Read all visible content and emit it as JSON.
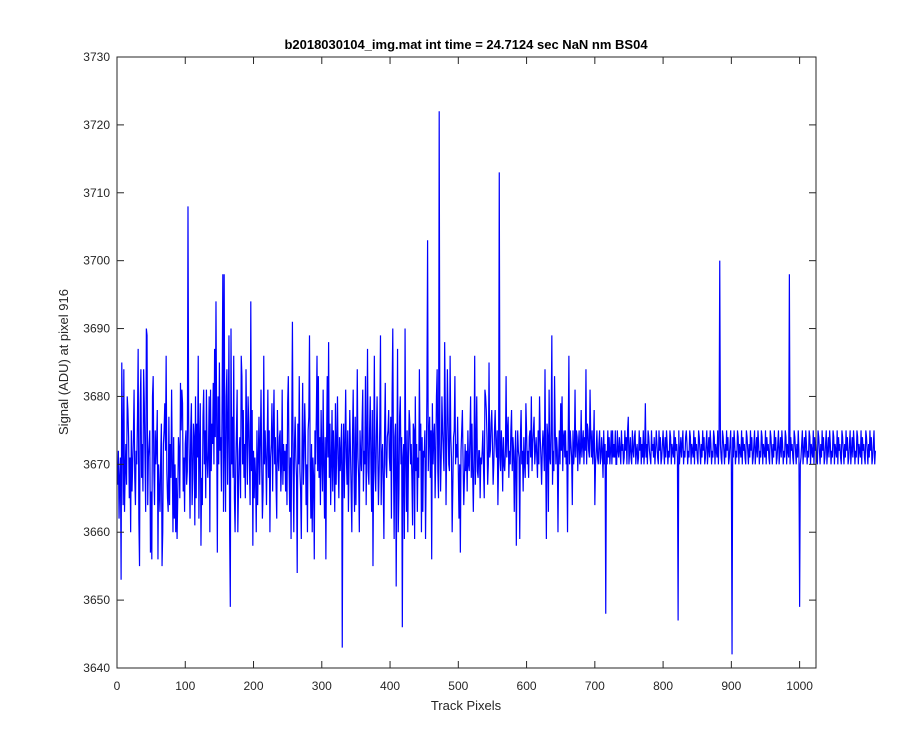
{
  "figure": {
    "title": "b2018030104_img.mat int time = 24.7124 sec  NaN nm BS04"
  },
  "chart_data": {
    "type": "line",
    "title": "b2018030104_img.mat int time = 24.7124 sec  NaN nm BS04",
    "xlabel": "Track Pixels",
    "ylabel": "Signal (ADU) at pixel 916",
    "xlim": [
      0,
      1024
    ],
    "ylim": [
      3640,
      3730
    ],
    "xticks": [
      0,
      100,
      200,
      300,
      400,
      500,
      600,
      700,
      800,
      900,
      1000
    ],
    "yticks": [
      3640,
      3650,
      3660,
      3670,
      3680,
      3690,
      3700,
      3710,
      3720,
      3730
    ],
    "grid": false,
    "series": [
      {
        "color": "#0000ff",
        "x_start": 1,
        "x_step": 1,
        "values": [
          3667,
          3672,
          3662,
          3668,
          3671,
          3653,
          3685,
          3675,
          3664,
          3684,
          3663,
          3669,
          3673,
          3667,
          3680,
          3678,
          3674,
          3665,
          3671,
          3660,
          3675,
          3666,
          3670,
          3674,
          3681,
          3668,
          3664,
          3672,
          3670,
          3677,
          3687,
          3662,
          3655,
          3679,
          3684,
          3668,
          3673,
          3666,
          3684,
          3679,
          3671,
          3663,
          3690,
          3689,
          3664,
          3671,
          3673,
          3675,
          3657,
          3666,
          3656,
          3680,
          3683,
          3669,
          3664,
          3675,
          3670,
          3673,
          3678,
          3656,
          3670,
          3666,
          3663,
          3671,
          3676,
          3655,
          3660,
          3673,
          3675,
          3679,
          3672,
          3686,
          3669,
          3665,
          3663,
          3677,
          3664,
          3673,
          3668,
          3681,
          3670,
          3660,
          3674,
          3662,
          3670,
          3660,
          3668,
          3659,
          3665,
          3674,
          3672,
          3665,
          3682,
          3675,
          3681,
          3679,
          3666,
          3671,
          3663,
          3673,
          3675,
          3667,
          3669,
          3708,
          3676,
          3670,
          3662,
          3675,
          3679,
          3664,
          3668,
          3676,
          3674,
          3661,
          3680,
          3665,
          3676,
          3671,
          3686,
          3662,
          3673,
          3679,
          3658,
          3668,
          3664,
          3677,
          3681,
          3670,
          3675,
          3665,
          3681,
          3671,
          3668,
          3672,
          3680,
          3660,
          3681,
          3669,
          3676,
          3673,
          3682,
          3670,
          3687,
          3674,
          3694,
          3676,
          3657,
          3680,
          3670,
          3685,
          3672,
          3674,
          3666,
          3680,
          3698,
          3663,
          3698,
          3671,
          3663,
          3680,
          3684,
          3667,
          3676,
          3689,
          3660,
          3649,
          3690,
          3670,
          3677,
          3668,
          3686,
          3665,
          3660,
          3670,
          3675,
          3681,
          3660,
          3666,
          3672,
          3674,
          3665,
          3686,
          3683,
          3670,
          3678,
          3668,
          3673,
          3665,
          3684,
          3675,
          3667,
          3680,
          3676,
          3670,
          3664,
          3694,
          3669,
          3678,
          3658,
          3672,
          3665,
          3671,
          3668,
          3660,
          3675,
          3664,
          3671,
          3677,
          3667,
          3673,
          3681,
          3670,
          3662,
          3666,
          3686,
          3670,
          3675,
          3671,
          3664,
          3673,
          3681,
          3668,
          3675,
          3660,
          3671,
          3673,
          3679,
          3666,
          3675,
          3681,
          3670,
          3674,
          3667,
          3662,
          3678,
          3671,
          3669,
          3674,
          3675,
          3666,
          3670,
          3681,
          3667,
          3673,
          3669,
          3672,
          3666,
          3673,
          3664,
          3679,
          3683,
          3670,
          3663,
          3671,
          3659,
          3675,
          3691,
          3670,
          3660,
          3673,
          3677,
          3671,
          3668,
          3654,
          3676,
          3670,
          3683,
          3669,
          3666,
          3659,
          3672,
          3682,
          3667,
          3671,
          3679,
          3674,
          3664,
          3670,
          3660,
          3675,
          3677,
          3689,
          3670,
          3662,
          3673,
          3660,
          3671,
          3668,
          3656,
          3675,
          3670,
          3677,
          3686,
          3669,
          3683,
          3668,
          3674,
          3664,
          3678,
          3671,
          3666,
          3681,
          3670,
          3662,
          3674,
          3656,
          3673,
          3683,
          3671,
          3688,
          3668,
          3676,
          3664,
          3670,
          3678,
          3666,
          3675,
          3671,
          3663,
          3679,
          3667,
          3673,
          3680,
          3670,
          3665,
          3674,
          3669,
          3672,
          3676,
          3643,
          3670,
          3676,
          3665,
          3673,
          3681,
          3671,
          3667,
          3675,
          3663,
          3670,
          3678,
          3672,
          3666,
          3660,
          3674,
          3681,
          3670,
          3663,
          3677,
          3664,
          3672,
          3684,
          3671,
          3668,
          3660,
          3675,
          3671,
          3669,
          3676,
          3681,
          3666,
          3672,
          3670,
          3683,
          3664,
          3673,
          3687,
          3669,
          3667,
          3675,
          3680,
          3670,
          3663,
          3678,
          3655,
          3671,
          3686,
          3669,
          3666,
          3674,
          3680,
          3672,
          3664,
          3669,
          3676,
          3689,
          3664,
          3671,
          3673,
          3667,
          3659,
          3675,
          3682,
          3670,
          3668,
          3674,
          3675,
          3678,
          3671,
          3669,
          3677,
          3662,
          3680,
          3690,
          3671,
          3659,
          3674,
          3676,
          3652,
          3669,
          3687,
          3660,
          3666,
          3677,
          3680,
          3670,
          3674,
          3646,
          3671,
          3673,
          3659,
          3690,
          3671,
          3663,
          3675,
          3660,
          3671,
          3678,
          3676,
          3670,
          3673,
          3668,
          3661,
          3676,
          3675,
          3659,
          3680,
          3669,
          3673,
          3663,
          3671,
          3668,
          3684,
          3672,
          3676,
          3660,
          3674,
          3663,
          3672,
          3671,
          3675,
          3659,
          3670,
          3680,
          3703,
          3669,
          3674,
          3677,
          3668,
          3675,
          3656,
          3679,
          3670,
          3674,
          3676,
          3665,
          3671,
          3680,
          3684,
          3669,
          3665,
          3722,
          3673,
          3666,
          3671,
          3680,
          3675,
          3672,
          3669,
          3688,
          3678,
          3664,
          3673,
          3684,
          3677,
          3670,
          3669,
          3686,
          3674,
          3671,
          3660,
          3667,
          3674,
          3675,
          3683,
          3670,
          3673,
          3671,
          3677,
          3669,
          3662,
          3670,
          3657,
          3672,
          3675,
          3678,
          3670,
          3664,
          3668,
          3673,
          3669,
          3672,
          3666,
          3675,
          3670,
          3669,
          3674,
          3680,
          3668,
          3676,
          3669,
          3663,
          3671,
          3686,
          3667,
          3673,
          3680,
          3669,
          3668,
          3672,
          3672,
          3665,
          3671,
          3670,
          3672,
          3675,
          3669,
          3665,
          3681,
          3680,
          3678,
          3674,
          3667,
          3670,
          3685,
          3671,
          3672,
          3676,
          3678,
          3673,
          3667,
          3670,
          3675,
          3678,
          3673,
          3671,
          3675,
          3664,
          3670,
          3713,
          3671,
          3669,
          3675,
          3672,
          3666,
          3674,
          3670,
          3669,
          3672,
          3683,
          3671,
          3675,
          3677,
          3668,
          3672,
          3670,
          3675,
          3678,
          3669,
          3674,
          3672,
          3663,
          3671,
          3675,
          3658,
          3670,
          3675,
          3672,
          3671,
          3659,
          3674,
          3678,
          3670,
          3672,
          3666,
          3674,
          3670,
          3668,
          3679,
          3675,
          3670,
          3672,
          3668,
          3674,
          3675,
          3671,
          3680,
          3669,
          3673,
          3675,
          3677,
          3670,
          3672,
          3674,
          3671,
          3668,
          3675,
          3670,
          3680,
          3674,
          3671,
          3667,
          3672,
          3675,
          3673,
          3669,
          3684,
          3671,
          3659,
          3676,
          3674,
          3663,
          3681,
          3671,
          3670,
          3675,
          3689,
          3667,
          3672,
          3669,
          3683,
          3675,
          3670,
          3674,
          3672,
          3660,
          3671,
          3675,
          3670,
          3679,
          3672,
          3680,
          3669,
          3674,
          3675,
          3671,
          3675,
          3670,
          3672,
          3660,
          3674,
          3686,
          3670,
          3675,
          3673,
          3671,
          3664,
          3675,
          3670,
          3672,
          3681,
          3671,
          3675,
          3674,
          3669,
          3673,
          3675,
          3670,
          3672,
          3678,
          3671,
          3673,
          3675,
          3670,
          3674,
          3672,
          3684,
          3670,
          3676,
          3675,
          3672,
          3671,
          3681,
          3674,
          3671,
          3675,
          3670,
          3673,
          3678,
          3664,
          3670,
          3672,
          3675,
          3671,
          3670,
          3673,
          3675,
          3670,
          3671,
          3674,
          3672,
          3668,
          3675,
          3670,
          3673,
          3648,
          3672,
          3670,
          3675,
          3671,
          3674,
          3670,
          3672,
          3675,
          3670,
          3675,
          3671,
          3673,
          3671,
          3675,
          3670,
          3670,
          3675,
          3672,
          3671,
          3674,
          3672,
          3670,
          3675,
          3672,
          3673,
          3670,
          3671,
          3675,
          3672,
          3674,
          3670,
          3675,
          3677,
          3670,
          3672,
          3674,
          3671,
          3670,
          3675,
          3672,
          3671,
          3674,
          3675,
          3670,
          3672,
          3673,
          3670,
          3671,
          3675,
          3672,
          3674,
          3670,
          3673,
          3671,
          3675,
          3670,
          3672,
          3679,
          3671,
          3673,
          3670,
          3675,
          3674,
          3672,
          3671,
          3670,
          3675,
          3672,
          3673,
          3671,
          3674,
          3670,
          3672,
          3675,
          3673,
          3671,
          3670,
          3675,
          3672,
          3674,
          3670,
          3671,
          3673,
          3675,
          3672,
          3670,
          3674,
          3671,
          3675,
          3673,
          3670,
          3672,
          3671,
          3675,
          3674,
          3670,
          3673,
          3672,
          3671,
          3675,
          3670,
          3674,
          3672,
          3673,
          3671,
          3647,
          3675,
          3670,
          3672,
          3674,
          3671,
          3673,
          3675,
          3670,
          3672,
          3671,
          3674,
          3675,
          3673,
          3670,
          3672,
          3671,
          3675,
          3674,
          3670,
          3673,
          3672,
          3671,
          3675,
          3670,
          3674,
          3672,
          3673,
          3671,
          3670,
          3675,
          3674,
          3672,
          3670,
          3673,
          3671,
          3675,
          3672,
          3674,
          3670,
          3671,
          3673,
          3675,
          3670,
          3672,
          3674,
          3671,
          3675,
          3673,
          3670,
          3672,
          3671,
          3675,
          3674,
          3670,
          3673,
          3672,
          3671,
          3675,
          3670,
          3674,
          3700,
          3673,
          3671,
          3670,
          3675,
          3674,
          3672,
          3670,
          3673,
          3671,
          3675,
          3672,
          3674,
          3670,
          3671,
          3673,
          3675,
          3670,
          3642,
          3674,
          3671,
          3675,
          3673,
          3670,
          3672,
          3671,
          3675,
          3674,
          3670,
          3673,
          3672,
          3671,
          3675,
          3670,
          3674,
          3672,
          3673,
          3671,
          3670,
          3675,
          3674,
          3672,
          3670,
          3673,
          3671,
          3675,
          3672,
          3674,
          3670,
          3671,
          3673,
          3675,
          3670,
          3672,
          3674,
          3671,
          3675,
          3673,
          3670,
          3672,
          3671,
          3675,
          3674,
          3670,
          3673,
          3672,
          3671,
          3675,
          3670,
          3674,
          3672,
          3673,
          3671,
          3670,
          3675,
          3674,
          3672,
          3670,
          3673,
          3671,
          3675,
          3672,
          3674,
          3670,
          3671,
          3673,
          3675,
          3670,
          3672,
          3674,
          3671,
          3675,
          3673,
          3670,
          3672,
          3671,
          3675,
          3674,
          3670,
          3673,
          3672,
          3671,
          3698,
          3670,
          3674,
          3672,
          3673,
          3671,
          3670,
          3675,
          3674,
          3672,
          3670,
          3673,
          3671,
          3675,
          3672,
          3649,
          3670,
          3671,
          3673,
          3675,
          3670,
          3672,
          3674,
          3671,
          3675,
          3673,
          3670,
          3672,
          3671,
          3675,
          3674,
          3670,
          3673,
          3672,
          3671,
          3675,
          3670,
          3674,
          3672,
          3673,
          3671,
          3670,
          3675,
          3674,
          3672,
          3670,
          3673,
          3671,
          3675,
          3672,
          3674,
          3670,
          3671,
          3673,
          3675,
          3670,
          3672,
          3674,
          3671,
          3675,
          3673,
          3670,
          3672,
          3671,
          3675,
          3674,
          3670,
          3673,
          3672,
          3671,
          3675,
          3670,
          3674,
          3672,
          3673,
          3671,
          3670,
          3675,
          3674,
          3672,
          3670,
          3673,
          3671,
          3675,
          3672,
          3674,
          3670,
          3671,
          3673,
          3675,
          3670,
          3672,
          3674,
          3671,
          3675,
          3673,
          3670,
          3672,
          3671,
          3675,
          3674,
          3670,
          3673,
          3672,
          3671,
          3675,
          3670,
          3674,
          3672,
          3673,
          3671,
          3670,
          3675,
          3674,
          3672,
          3670,
          3673,
          3671,
          3675,
          3672,
          3674,
          3670,
          3671,
          3673,
          3675,
          3670,
          3672
        ]
      }
    ]
  }
}
